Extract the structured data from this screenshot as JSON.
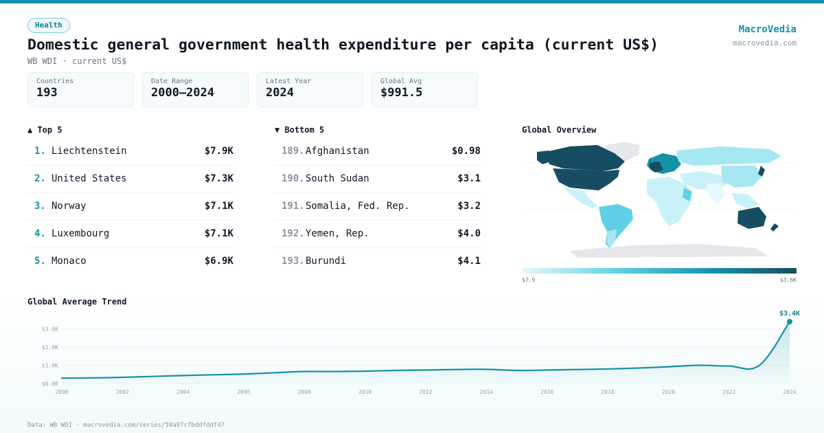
{
  "header": {
    "tag": "Health",
    "title": "Domestic general government health expenditure per capita (current US$)",
    "subtitle": "WB WDI · current US$",
    "brand": "MacroVedia",
    "brand_url": "macrovedia.com"
  },
  "stats": [
    {
      "label": "Countries",
      "value": "193"
    },
    {
      "label": "Date Range",
      "value": "2000–2024"
    },
    {
      "label": "Latest Year",
      "value": "2024"
    },
    {
      "label": "Global Avg",
      "value": "$991.5"
    }
  ],
  "top5": {
    "title": "▲ Top 5",
    "items": [
      {
        "rank": "1.",
        "name": "Liechtenstein",
        "value": "$7.9K"
      },
      {
        "rank": "2.",
        "name": "United States",
        "value": "$7.3K"
      },
      {
        "rank": "3.",
        "name": "Norway",
        "value": "$7.1K"
      },
      {
        "rank": "4.",
        "name": "Luxembourg",
        "value": "$7.1K"
      },
      {
        "rank": "5.",
        "name": "Monaco",
        "value": "$6.9K"
      }
    ]
  },
  "bottom5": {
    "title": "▼ Bottom 5",
    "items": [
      {
        "rank": "189.",
        "name": "Afghanistan",
        "value": "$0.98"
      },
      {
        "rank": "190.",
        "name": "South Sudan",
        "value": "$3.1"
      },
      {
        "rank": "191.",
        "name": "Somalia, Fed. Rep.",
        "value": "$3.2"
      },
      {
        "rank": "192.",
        "name": "Yemen, Rep.",
        "value": "$4.0"
      },
      {
        "rank": "193.",
        "name": "Burundi",
        "value": "$4.1"
      }
    ]
  },
  "map": {
    "title": "Global Overview",
    "legend_min": "$7.9",
    "legend_max": "$3.6K",
    "colors": {
      "low": "#e6f8fb",
      "mid": "#5fd0e3",
      "high": "#1591a8",
      "max": "#174d63",
      "nodata": "#e5e7eb"
    }
  },
  "chart_data": {
    "type": "area",
    "title": "Global Average Trend",
    "x": [
      2000,
      2001,
      2002,
      2003,
      2004,
      2005,
      2006,
      2007,
      2008,
      2009,
      2010,
      2011,
      2012,
      2013,
      2014,
      2015,
      2016,
      2017,
      2018,
      2019,
      2020,
      2021,
      2022,
      2023,
      2024
    ],
    "y": [
      300,
      310,
      340,
      390,
      440,
      480,
      520,
      590,
      660,
      660,
      680,
      720,
      740,
      770,
      780,
      720,
      740,
      770,
      800,
      850,
      920,
      1000,
      960,
      1000,
      3400
    ],
    "ylim": [
      0,
      3400
    ],
    "yticks": [
      0,
      1000,
      2000,
      3000
    ],
    "ytick_labels": [
      "$0.00",
      "$1.0K",
      "$2.0K",
      "$3.0K"
    ],
    "xticks": [
      2000,
      2002,
      2004,
      2006,
      2008,
      2010,
      2012,
      2014,
      2016,
      2018,
      2020,
      2022,
      2024
    ],
    "end_label": "$3.4K",
    "line_color": "#1591a8",
    "grid": true
  },
  "footer": {
    "source": "Data: WB WDI · macrovedia.com/series/58a97cfbddfddf47"
  }
}
